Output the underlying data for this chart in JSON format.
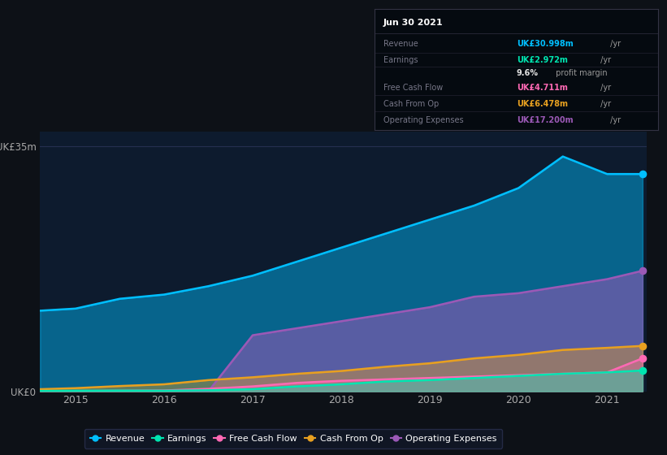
{
  "bg_color": "#0d1117",
  "plot_bg_color": "#0d1b2e",
  "years": [
    2014.6,
    2015.0,
    2015.5,
    2016.0,
    2016.5,
    2017.0,
    2017.5,
    2018.0,
    2018.5,
    2019.0,
    2019.5,
    2020.0,
    2020.5,
    2021.0,
    2021.4
  ],
  "revenue": [
    11.5,
    11.8,
    13.2,
    13.8,
    15.0,
    16.5,
    18.5,
    20.5,
    22.5,
    24.5,
    26.5,
    29.0,
    33.5,
    31.0,
    31.0
  ],
  "earnings": [
    0.05,
    0.08,
    0.1,
    0.08,
    0.15,
    0.3,
    0.7,
    1.0,
    1.4,
    1.6,
    1.9,
    2.2,
    2.5,
    2.7,
    2.97
  ],
  "free_cash_flow": [
    0.02,
    0.05,
    0.08,
    0.12,
    0.35,
    0.7,
    1.2,
    1.5,
    1.7,
    1.9,
    2.1,
    2.3,
    2.5,
    2.7,
    4.71
  ],
  "cash_from_op": [
    0.3,
    0.45,
    0.75,
    1.0,
    1.6,
    2.0,
    2.5,
    2.9,
    3.5,
    4.0,
    4.7,
    5.2,
    5.9,
    6.2,
    6.48
  ],
  "op_expenses": [
    0.0,
    0.0,
    0.0,
    0.0,
    0.0,
    8.0,
    9.0,
    10.0,
    11.0,
    12.0,
    13.5,
    14.0,
    15.0,
    16.0,
    17.2
  ],
  "revenue_color": "#00bfff",
  "earnings_color": "#00e5b0",
  "free_cash_flow_color": "#ff69b4",
  "cash_from_op_color": "#e8a020",
  "op_expenses_color": "#9b59b6",
  "xlabel_ticks": [
    2015,
    2016,
    2017,
    2018,
    2019,
    2020,
    2021
  ],
  "ylim_max": 35,
  "legend": [
    {
      "label": "Revenue",
      "color": "#00bfff"
    },
    {
      "label": "Earnings",
      "color": "#00e5b0"
    },
    {
      "label": "Free Cash Flow",
      "color": "#ff69b4"
    },
    {
      "label": "Cash From Op",
      "color": "#e8a020"
    },
    {
      "label": "Operating Expenses",
      "color": "#9b59b6"
    }
  ]
}
